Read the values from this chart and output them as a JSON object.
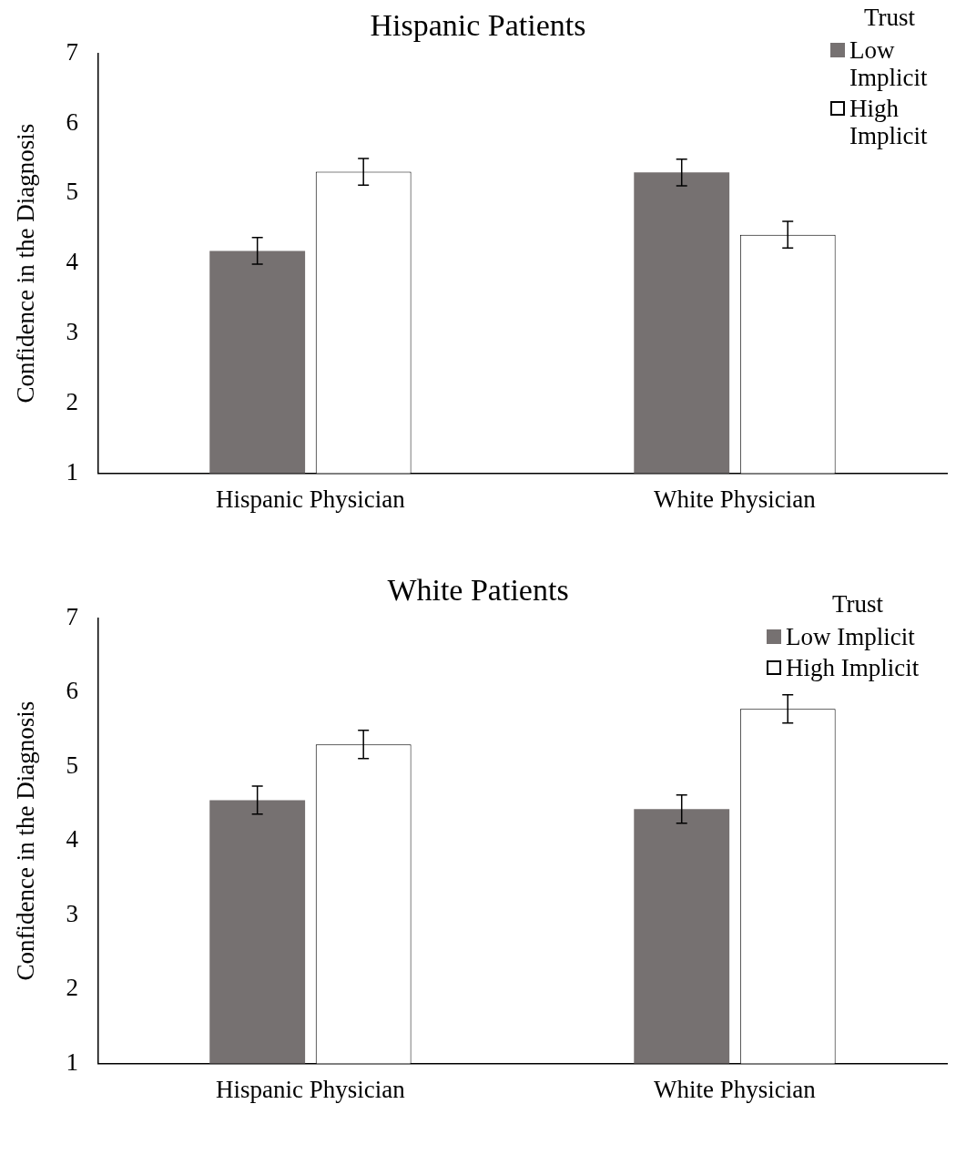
{
  "chart_data": [
    {
      "type": "bar",
      "title": "Hispanic Patients",
      "ylabel": "Confidence in the Diagnosis",
      "legend_title": "Trust",
      "categories": [
        "Hispanic Physician",
        "White Physician"
      ],
      "series": [
        {
          "name": "Low Implicit",
          "color": "#767171",
          "values": [
            4.18,
            5.3
          ],
          "errors": [
            0.19,
            0.19
          ]
        },
        {
          "name": "High Implicit",
          "color": "#ffffff",
          "values": [
            5.31,
            4.41
          ],
          "errors": [
            0.19,
            0.19
          ]
        }
      ],
      "ylim": [
        1,
        7
      ],
      "yticks": [
        1,
        2,
        3,
        4,
        5,
        6,
        7
      ],
      "grid": false,
      "legend": "top right"
    },
    {
      "type": "bar",
      "title": "White Patients",
      "ylabel": "Confidence in the Diagnosis",
      "legend_title": "Trust",
      "categories": [
        "Hispanic Physician",
        "White Physician"
      ],
      "series": [
        {
          "name": "Low Implicit",
          "color": "#767171",
          "values": [
            4.55,
            4.43
          ],
          "errors": [
            0.19,
            0.19
          ]
        },
        {
          "name": "High Implicit",
          "color": "#ffffff",
          "values": [
            5.3,
            5.78
          ],
          "errors": [
            0.19,
            0.19
          ]
        }
      ],
      "ylim": [
        1,
        7
      ],
      "yticks": [
        1,
        2,
        3,
        4,
        5,
        6,
        7
      ],
      "grid": false,
      "legend": "top right"
    }
  ]
}
